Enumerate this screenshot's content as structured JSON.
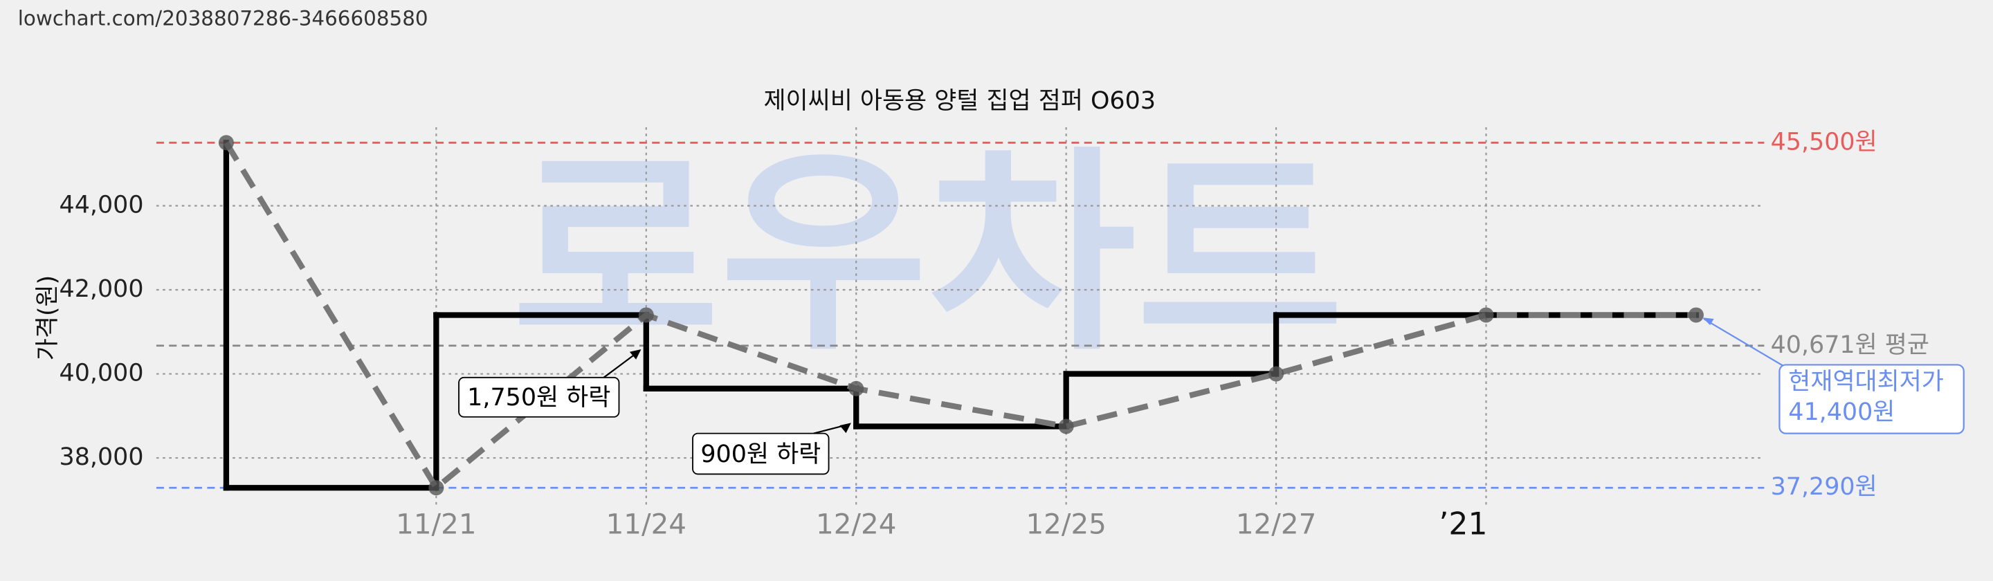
{
  "url": "lowchart.com/2038807286-3466608580",
  "chart_data": {
    "type": "line",
    "title": "제이씨비 아동용 양털 집업 점퍼 O603",
    "ylabel": "가격(원)",
    "watermark": "로우차트",
    "categories": [
      null,
      "11/21",
      "11/24",
      "12/24",
      "12/25",
      "12/27",
      "’21",
      null
    ],
    "values": [
      45500,
      37290,
      41400,
      39650,
      38750,
      40000,
      41400,
      41400
    ],
    "step_color": "#000000",
    "trend_color": "#777777",
    "point_color": "#555555",
    "ylim": [
      36800,
      46200
    ],
    "yticks": [
      {
        "value": 38000,
        "label": "38,000"
      },
      {
        "value": 40000,
        "label": "40,000"
      },
      {
        "value": 42000,
        "label": "42,000"
      },
      {
        "value": 44000,
        "label": "44,000"
      }
    ],
    "grid": true,
    "reference_lines": [
      {
        "value": 45500,
        "label": "45,500원",
        "color": "#e85c5c"
      },
      {
        "value": 40671,
        "label": "40,671원 평균",
        "color": "#888888"
      },
      {
        "value": 37290,
        "label": "37,290원",
        "color": "#6a8ff0"
      }
    ],
    "annotations": [
      {
        "text": "1,750원 하락"
      },
      {
        "text": "900원 하락"
      }
    ],
    "callout": {
      "lines": [
        "현재역대최저가",
        "41,400원"
      ],
      "color": "#6a8ff0"
    }
  }
}
